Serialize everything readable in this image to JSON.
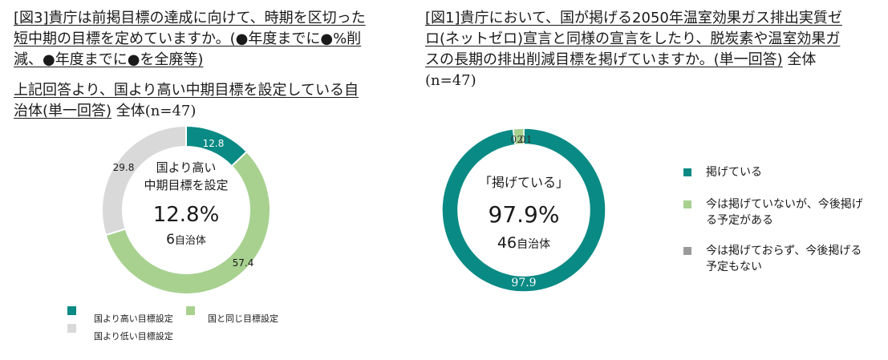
{
  "colors": {
    "teal": "#0a8a84",
    "light_green": "#a8d190",
    "gray": "#d9d9d9",
    "dark_gray": "#9a9a9a"
  },
  "left": {
    "title_prefix": "[図3]",
    "title_text": "貴庁は前掲目標の達成に向けて、時期を区切った短中期の目標を定めていますか。(●年度までに●%削減、●年度までに●を全廃等)",
    "subtitle_text": "上記回答より、国より高い中期目標を設定している自治体(単一回答)",
    "subtitle_suffix": " 全体",
    "subtitle_n": "(n=47)",
    "center_line1": "国より高い",
    "center_line2": "中期目標を設定",
    "center_value": "12.8%",
    "center_count_num": "6",
    "center_count_unit": "自治体"
  },
  "right": {
    "title_prefix": "[図1]",
    "title_text": "貴庁において、国が掲げる2050年温室効果ガス排出実質ゼロ(ネットゼロ)宣言と同様の宣言をしたり、脱炭素や温室効果ガスの長期の排出削減目標を掲げていますか。(単一回答)",
    "title_suffix": " 全体",
    "title_n": "(n=47)",
    "center_line1": "「掲げている」",
    "center_value": "97.9%",
    "center_count_num": "46",
    "center_count_unit": "自治体"
  },
  "chart_data": [
    {
      "type": "pie",
      "variant": "donut",
      "categories": [
        "国より高い目標設定",
        "国と同じ目標設定",
        "国より低い目標設定"
      ],
      "values": [
        12.8,
        57.4,
        29.8
      ],
      "data_labels": [
        "12.8",
        "57.4",
        "29.8"
      ],
      "colors": [
        "#0a8a84",
        "#a8d190",
        "#d9d9d9"
      ],
      "legend_placement": "bottom"
    },
    {
      "type": "pie",
      "variant": "donut",
      "categories": [
        "掲げている",
        "今は掲げていないが、今後掲げる予定がある",
        "今は掲げておらず、今後掲げる予定もない"
      ],
      "values": [
        97.9,
        2.1,
        0.0
      ],
      "data_labels": [
        "97.9",
        "2.1",
        "0.0"
      ],
      "colors": [
        "#0a8a84",
        "#a8d190",
        "#9a9a9a"
      ],
      "legend_placement": "right"
    }
  ]
}
